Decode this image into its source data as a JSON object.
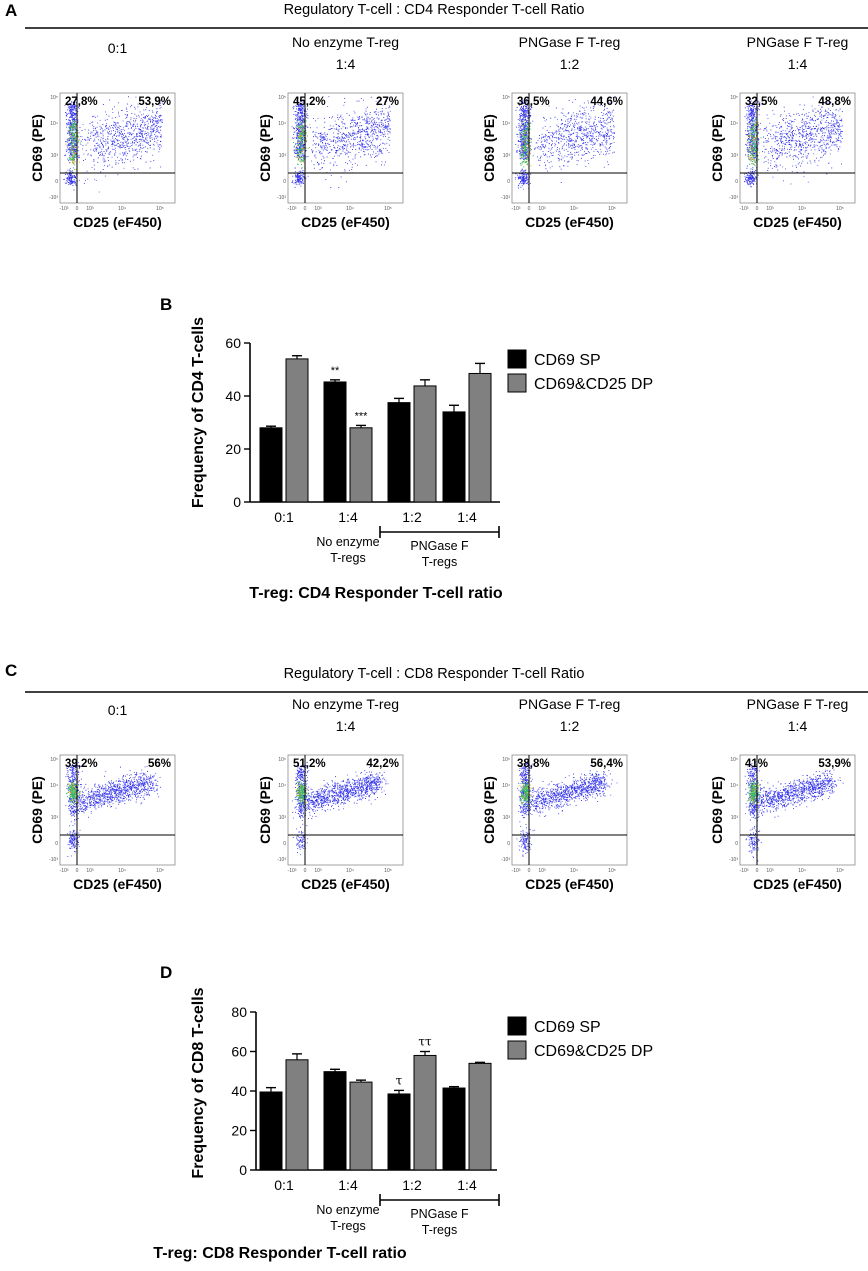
{
  "figure": {
    "panel_letters": {
      "a": "A",
      "b": "B",
      "c": "C",
      "d": "D"
    },
    "header_cd4": "Regulatory T-cell : CD4 Responder T-cell Ratio",
    "header_cd8": "Regulatory T-cell : CD8 Responder T-cell Ratio",
    "flow_titles": [
      {
        "line1": "0:1",
        "line2": ""
      },
      {
        "line1": "No enzyme T-reg",
        "line2": "1:4"
      },
      {
        "line1": "PNGase F T-reg",
        "line2": "1:2"
      },
      {
        "line1": "PNGase F T-reg",
        "line2": "1:4"
      }
    ],
    "flow_x_label": "CD25 (eF450)",
    "flow_y_label": "CD69 (PE)",
    "flow_y_ticks": [
      "10⁵",
      "10⁴",
      "10³",
      "0",
      "-10³"
    ],
    "flow_x_ticks": [
      "-10³",
      "0",
      "10³",
      "10⁴",
      "10⁵"
    ],
    "cd4_quadrants": [
      {
        "left": "27,8%",
        "right": "53,9%"
      },
      {
        "left": "45,2%",
        "right": "27%"
      },
      {
        "left": "36,5%",
        "right": "44,6%"
      },
      {
        "left": "32,5%",
        "right": "48,8%"
      }
    ],
    "cd8_quadrants": [
      {
        "left": "39,2%",
        "right": "56%"
      },
      {
        "left": "51,2%",
        "right": "42,2%"
      },
      {
        "left": "38,8%",
        "right": "56,4%"
      },
      {
        "left": "41%",
        "right": "53,9%"
      }
    ],
    "group_labels": {
      "no_enzyme": [
        "No enzyme",
        "T-regs"
      ],
      "pngase": [
        "PNGase F",
        "T-regs"
      ]
    },
    "colors": {
      "sp": "#000000",
      "dp": "#808080"
    }
  },
  "chart_data": [
    {
      "type": "bar",
      "panel": "B",
      "categories": [
        "0:1",
        "1:4",
        "1:2",
        "1:4"
      ],
      "series": [
        {
          "name": "CD69 SP",
          "values": [
            28,
            45.3,
            37.5,
            34
          ],
          "errors": [
            0.6,
            0.8,
            1.6,
            2.5
          ]
        },
        {
          "name": "CD69&CD25 DP",
          "values": [
            54,
            28,
            43.8,
            48.5
          ],
          "errors": [
            1.2,
            0.9,
            2.3,
            3.8
          ]
        }
      ],
      "annotations": [
        {
          "text": "**",
          "category": 1,
          "series": 0
        },
        {
          "text": "***",
          "category": 1,
          "series": 1
        }
      ],
      "yticks": [
        "0",
        "20",
        "40",
        "60"
      ],
      "ylim": [
        0,
        60
      ],
      "ylabel": "Frequency of CD4 T-cells",
      "xlabel": "T-reg: CD4 Responder T-cell ratio",
      "legend": [
        "CD69 SP",
        "CD69&CD25 DP"
      ]
    },
    {
      "type": "bar",
      "panel": "D",
      "categories": [
        "0:1",
        "1:4",
        "1:2",
        "1:4"
      ],
      "series": [
        {
          "name": "CD69 SP",
          "values": [
            39.5,
            49.8,
            38.5,
            41.5
          ],
          "errors": [
            2.2,
            1.2,
            1.8,
            0.7
          ]
        },
        {
          "name": "CD69&CD25 DP",
          "values": [
            55.8,
            44.5,
            58,
            54
          ],
          "errors": [
            3,
            1,
            2,
            0.5
          ]
        }
      ],
      "annotations": [
        {
          "text": "τ",
          "category": 2,
          "series": 0
        },
        {
          "text": "ττ",
          "category": 2,
          "series": 1
        }
      ],
      "yticks": [
        "0",
        "20",
        "40",
        "60",
        "80"
      ],
      "ylim": [
        0,
        80
      ],
      "ylabel": "Frequency of CD8 T-cells",
      "xlabel": "T-reg: CD8 Responder T-cell ratio",
      "legend": [
        "CD69 SP",
        "CD69&CD25 DP"
      ]
    }
  ]
}
